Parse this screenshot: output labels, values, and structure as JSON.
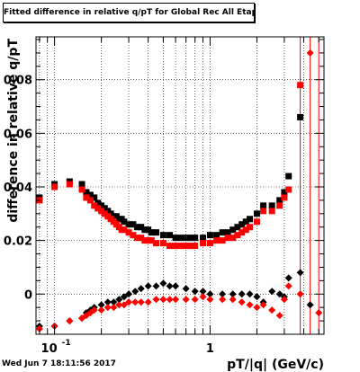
{
  "title": "Fitted difference in relative q/pT for Global Rec All EtapT",
  "timestamp": "Wed Jun  7 18:11:56 2017",
  "chart_data": {
    "type": "scatter",
    "title": "Fitted difference in relative q/pT for Global Rec All EtapT",
    "xlabel": "pT/|q| (GeV/c)",
    "ylabel": "difference in relative q/pT",
    "xscale": "log",
    "xlim": [
      0.076,
      5.4
    ],
    "ylim": [
      -0.015,
      0.096
    ],
    "x_tick_labels": [
      {
        "x": 0.1,
        "label": "10",
        "sup": "-1"
      },
      {
        "x": 1,
        "label": "1",
        "sup": ""
      }
    ],
    "y_ticks": [
      0,
      0.02,
      0.04,
      0.06,
      0.08
    ],
    "y_tick_labels": [
      "0",
      "0.02",
      "0.04",
      "0.06",
      "0.08"
    ],
    "grid": true,
    "colors": {
      "black_series": "#000000",
      "red_series": "#ff0000"
    },
    "series": [
      {
        "marker": "square",
        "color": "#000000",
        "points": [
          [
            0.08,
            0.036
          ],
          [
            0.1,
            0.041
          ],
          [
            0.125,
            0.042
          ],
          [
            0.15,
            0.041
          ],
          [
            0.16,
            0.038
          ],
          [
            0.17,
            0.037
          ],
          [
            0.18,
            0.036
          ],
          [
            0.19,
            0.034
          ],
          [
            0.2,
            0.033
          ],
          [
            0.21,
            0.032
          ],
          [
            0.22,
            0.031
          ],
          [
            0.23,
            0.03
          ],
          [
            0.24,
            0.029
          ],
          [
            0.25,
            0.029
          ],
          [
            0.26,
            0.028
          ],
          [
            0.27,
            0.028
          ],
          [
            0.28,
            0.027
          ],
          [
            0.3,
            0.026
          ],
          [
            0.32,
            0.026
          ],
          [
            0.34,
            0.025
          ],
          [
            0.36,
            0.025
          ],
          [
            0.38,
            0.024
          ],
          [
            0.4,
            0.024
          ],
          [
            0.42,
            0.023
          ],
          [
            0.45,
            0.023
          ],
          [
            0.5,
            0.022
          ],
          [
            0.55,
            0.022
          ],
          [
            0.6,
            0.021
          ],
          [
            0.65,
            0.021
          ],
          [
            0.7,
            0.021
          ],
          [
            0.75,
            0.021
          ],
          [
            0.8,
            0.021
          ],
          [
            0.9,
            0.021
          ],
          [
            1.0,
            0.022
          ],
          [
            1.1,
            0.022
          ],
          [
            1.2,
            0.023
          ],
          [
            1.3,
            0.023
          ],
          [
            1.4,
            0.024
          ],
          [
            1.5,
            0.025
          ],
          [
            1.6,
            0.026
          ],
          [
            1.7,
            0.027
          ],
          [
            1.8,
            0.028
          ],
          [
            2.0,
            0.03
          ],
          [
            2.2,
            0.033
          ],
          [
            2.5,
            0.033
          ],
          [
            2.8,
            0.035
          ],
          [
            3.0,
            0.038
          ],
          [
            3.2,
            0.044
          ],
          [
            3.8,
            0.066
          ]
        ]
      },
      {
        "marker": "square",
        "color": "#ff0000",
        "points": [
          [
            0.08,
            0.035
          ],
          [
            0.1,
            0.04
          ],
          [
            0.125,
            0.041
          ],
          [
            0.15,
            0.039
          ],
          [
            0.16,
            0.036
          ],
          [
            0.17,
            0.035
          ],
          [
            0.18,
            0.033
          ],
          [
            0.19,
            0.032
          ],
          [
            0.2,
            0.031
          ],
          [
            0.21,
            0.03
          ],
          [
            0.22,
            0.029
          ],
          [
            0.23,
            0.028
          ],
          [
            0.24,
            0.027
          ],
          [
            0.25,
            0.026
          ],
          [
            0.26,
            0.025
          ],
          [
            0.27,
            0.024
          ],
          [
            0.28,
            0.024
          ],
          [
            0.3,
            0.023
          ],
          [
            0.32,
            0.022
          ],
          [
            0.34,
            0.021
          ],
          [
            0.36,
            0.021
          ],
          [
            0.38,
            0.02
          ],
          [
            0.4,
            0.02
          ],
          [
            0.42,
            0.02
          ],
          [
            0.45,
            0.019
          ],
          [
            0.5,
            0.019
          ],
          [
            0.55,
            0.018
          ],
          [
            0.6,
            0.018
          ],
          [
            0.65,
            0.018
          ],
          [
            0.7,
            0.018
          ],
          [
            0.75,
            0.018
          ],
          [
            0.8,
            0.018
          ],
          [
            0.9,
            0.019
          ],
          [
            1.0,
            0.019
          ],
          [
            1.1,
            0.02
          ],
          [
            1.2,
            0.02
          ],
          [
            1.3,
            0.021
          ],
          [
            1.4,
            0.021
          ],
          [
            1.5,
            0.022
          ],
          [
            1.6,
            0.023
          ],
          [
            1.7,
            0.024
          ],
          [
            1.8,
            0.025
          ],
          [
            2.0,
            0.027
          ],
          [
            2.2,
            0.031
          ],
          [
            2.5,
            0.031
          ],
          [
            2.8,
            0.033
          ],
          [
            3.0,
            0.036
          ],
          [
            3.2,
            0.039
          ],
          [
            3.8,
            0.078
          ]
        ]
      },
      {
        "marker": "diamond",
        "color": "#000000",
        "points": [
          [
            0.08,
            -0.012
          ],
          [
            0.1,
            -0.012
          ],
          [
            0.125,
            -0.01
          ],
          [
            0.15,
            -0.009
          ],
          [
            0.16,
            -0.007
          ],
          [
            0.17,
            -0.006
          ],
          [
            0.18,
            -0.005
          ],
          [
            0.2,
            -0.004
          ],
          [
            0.22,
            -0.003
          ],
          [
            0.24,
            -0.003
          ],
          [
            0.26,
            -0.002
          ],
          [
            0.28,
            -0.001
          ],
          [
            0.3,
            0.0
          ],
          [
            0.33,
            0.001
          ],
          [
            0.36,
            0.002
          ],
          [
            0.4,
            0.003
          ],
          [
            0.45,
            0.003
          ],
          [
            0.5,
            0.004
          ],
          [
            0.55,
            0.003
          ],
          [
            0.6,
            0.003
          ],
          [
            0.7,
            0.002
          ],
          [
            0.8,
            0.001
          ],
          [
            0.9,
            0.001
          ],
          [
            1.0,
            0.0
          ],
          [
            1.2,
            0.0
          ],
          [
            1.4,
            0.0
          ],
          [
            1.6,
            0.0
          ],
          [
            1.8,
            0.0
          ],
          [
            2.0,
            -0.001
          ],
          [
            2.2,
            -0.003
          ],
          [
            2.5,
            0.001
          ],
          [
            2.8,
            0.0
          ],
          [
            3.0,
            -0.001
          ],
          [
            3.2,
            0.006
          ],
          [
            3.8,
            0.008
          ],
          [
            4.4,
            -0.004
          ]
        ]
      },
      {
        "marker": "diamond",
        "color": "#ff0000",
        "points": [
          [
            0.08,
            -0.013
          ],
          [
            0.1,
            -0.012
          ],
          [
            0.125,
            -0.01
          ],
          [
            0.15,
            -0.009
          ],
          [
            0.16,
            -0.008
          ],
          [
            0.17,
            -0.007
          ],
          [
            0.18,
            -0.006
          ],
          [
            0.2,
            -0.006
          ],
          [
            0.22,
            -0.005
          ],
          [
            0.24,
            -0.005
          ],
          [
            0.26,
            -0.004
          ],
          [
            0.28,
            -0.004
          ],
          [
            0.3,
            -0.003
          ],
          [
            0.33,
            -0.003
          ],
          [
            0.36,
            -0.003
          ],
          [
            0.4,
            -0.003
          ],
          [
            0.45,
            -0.002
          ],
          [
            0.5,
            -0.002
          ],
          [
            0.55,
            -0.002
          ],
          [
            0.6,
            -0.002
          ],
          [
            0.7,
            -0.002
          ],
          [
            0.8,
            -0.002
          ],
          [
            0.9,
            -0.001
          ],
          [
            1.0,
            -0.002
          ],
          [
            1.2,
            -0.002
          ],
          [
            1.4,
            -0.002
          ],
          [
            1.6,
            -0.003
          ],
          [
            1.8,
            -0.004
          ],
          [
            2.0,
            -0.005
          ],
          [
            2.2,
            -0.004
          ],
          [
            2.5,
            -0.006
          ],
          [
            2.8,
            -0.008
          ],
          [
            3.0,
            -0.002
          ],
          [
            3.2,
            0.003
          ],
          [
            3.8,
            0.0
          ],
          [
            4.4,
            0.09
          ],
          [
            5.0,
            -0.007
          ]
        ]
      }
    ],
    "error_bars": [
      {
        "x": 3.8,
        "color": "#ff0000"
      },
      {
        "x": 4.4,
        "color": "#ff0000"
      },
      {
        "x": 5.0,
        "color": "#ff0000"
      }
    ]
  }
}
